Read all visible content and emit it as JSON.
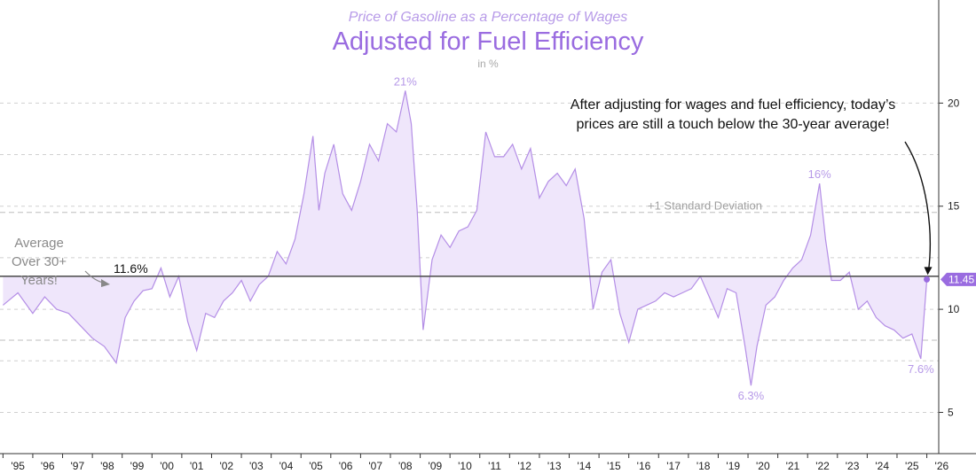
{
  "chart_data": {
    "type": "area",
    "title": "Adjusted for Fuel Efficiency",
    "subtitle": "Price of Gasoline as a Percentage of Wages",
    "unit_label": "in %",
    "ylim": [
      3,
      25
    ],
    "y_ticks": [
      5,
      10,
      15,
      20
    ],
    "grid": "dashed horizontal",
    "x_tick_labels": [
      "'95",
      "'96",
      "'97",
      "'98",
      "'99",
      "'00",
      "'01",
      "'02",
      "'03",
      "'04",
      "'05",
      "'06",
      "'07",
      "'08",
      "'09",
      "'10",
      "'11",
      "'12",
      "'13",
      "'14",
      "'15",
      "'16",
      "'17",
      "'18",
      "'19",
      "'20",
      "'21",
      "'22",
      "'23",
      "'24",
      "'25",
      "'26"
    ],
    "average": 11.6,
    "average_label": "11.6%",
    "average_note": "Average Over 30+ Years!",
    "std_dev_upper": 14.7,
    "std_dev_upper_label": "+1 Standard Deviation",
    "std_dev_lower": 8.5,
    "last_value": 11.45,
    "last_value_label": "11.45",
    "annotation": "After adjusting for wages and fuel efficiency, today’s prices are still a touch below the 30-year average!",
    "peak_labels": [
      {
        "x": 2008.5,
        "y": 20.6,
        "label": "21%"
      },
      {
        "x": 2022.4,
        "y": 16.1,
        "label": "16%"
      },
      {
        "x": 2020.1,
        "y": 6.3,
        "label": "6.3%"
      },
      {
        "x": 2025.8,
        "y": 7.6,
        "label": "7.6%"
      }
    ],
    "series": [
      {
        "x": [
          1995.0,
          1995.5,
          1996.0,
          1996.4,
          1996.8,
          1997.2,
          1997.6,
          1998.0,
          1998.4,
          1998.8,
          1999.1,
          1999.4,
          1999.7,
          2000.0,
          2000.3,
          2000.6,
          2000.9,
          2001.2,
          2001.5,
          2001.8,
          2002.1,
          2002.4,
          2002.7,
          2003.0,
          2003.3,
          2003.6,
          2003.9,
          2004.2,
          2004.5,
          2004.8,
          2005.1,
          2005.4,
          2005.6,
          2005.8,
          2006.1,
          2006.4,
          2006.7,
          2007.0,
          2007.3,
          2007.6,
          2007.9,
          2008.2,
          2008.5,
          2008.7,
          2008.9,
          2009.1,
          2009.4,
          2009.7,
          2010.0,
          2010.3,
          2010.6,
          2010.9,
          2011.2,
          2011.5,
          2011.8,
          2012.1,
          2012.4,
          2012.7,
          2013.0,
          2013.3,
          2013.6,
          2013.9,
          2014.2,
          2014.5,
          2014.8,
          2015.1,
          2015.4,
          2015.7,
          2016.0,
          2016.3,
          2016.6,
          2016.9,
          2017.2,
          2017.5,
          2017.8,
          2018.1,
          2018.4,
          2018.7,
          2019.0,
          2019.3,
          2019.6,
          2019.9,
          2020.1,
          2020.3,
          2020.6,
          2020.9,
          2021.2,
          2021.5,
          2021.8,
          2022.1,
          2022.4,
          2022.6,
          2022.8,
          2023.1,
          2023.4,
          2023.7,
          2024.0,
          2024.3,
          2024.6,
          2024.9,
          2025.2,
          2025.5,
          2025.8,
          2026.0
        ],
        "y": [
          10.2,
          10.8,
          9.8,
          10.6,
          10.0,
          9.8,
          9.2,
          8.6,
          8.2,
          7.4,
          9.6,
          10.4,
          10.9,
          11.0,
          12.0,
          10.6,
          11.6,
          9.4,
          8.0,
          9.8,
          9.6,
          10.4,
          10.8,
          11.4,
          10.4,
          11.2,
          11.6,
          12.8,
          12.2,
          13.4,
          15.6,
          18.4,
          14.8,
          16.6,
          18.0,
          15.6,
          14.8,
          16.2,
          18.0,
          17.2,
          19.0,
          18.6,
          20.6,
          19.0,
          14.8,
          9.0,
          12.4,
          13.6,
          13.0,
          13.8,
          14.0,
          14.8,
          18.6,
          17.4,
          17.4,
          18.0,
          16.8,
          17.8,
          15.4,
          16.2,
          16.6,
          16.0,
          16.8,
          14.4,
          10.0,
          11.8,
          12.4,
          9.8,
          8.4,
          10.0,
          10.2,
          10.4,
          10.8,
          10.6,
          10.8,
          11.0,
          11.6,
          10.6,
          9.6,
          11.0,
          10.8,
          8.2,
          6.3,
          8.2,
          10.2,
          10.6,
          11.4,
          12.0,
          12.4,
          13.6,
          16.1,
          13.4,
          11.4,
          11.4,
          11.8,
          10.0,
          10.4,
          9.6,
          9.2,
          9.0,
          8.6,
          8.8,
          7.6,
          11.45
        ]
      }
    ]
  }
}
